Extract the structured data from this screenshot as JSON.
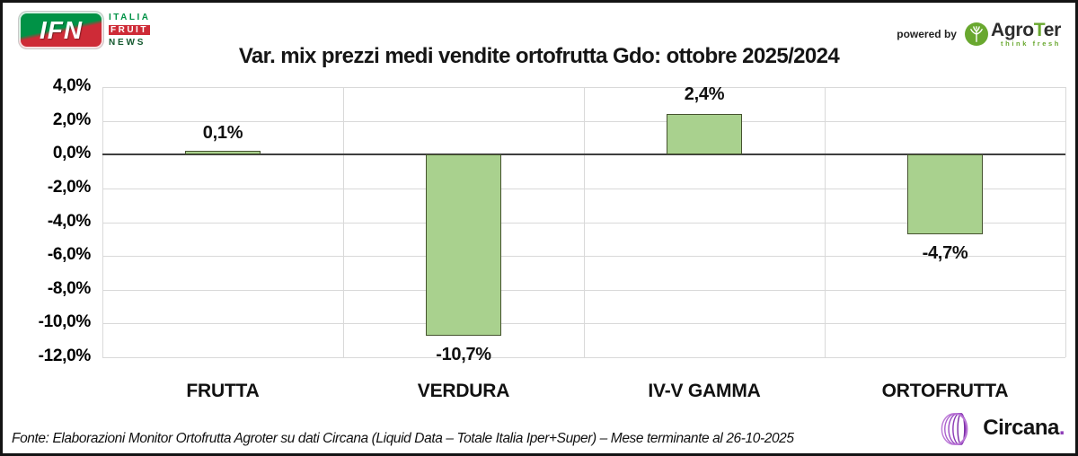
{
  "header": {
    "title": "Var. mix prezzi medi vendite ortofrutta Gdo: ottobre 2025/2024",
    "ifn_logo": {
      "acronym": "IFN",
      "line1": "ITALIA",
      "line2": "FRUIT",
      "line3": "NEWS"
    },
    "powered_by": "powered by",
    "agroter": {
      "name_prefix": "Agro",
      "name_t": "T",
      "name_suffix": "er",
      "tagline": "think fresh"
    }
  },
  "chart_data": {
    "type": "bar",
    "title": "Var. mix prezzi medi vendite ortofrutta Gdo: ottobre 2025/2024",
    "categories": [
      "FRUTTA",
      "VERDURA",
      "IV-V GAMMA",
      "ORTOFRUTTA"
    ],
    "values": [
      0.1,
      -10.7,
      2.4,
      -4.7
    ],
    "value_labels": [
      "0,1%",
      "-10,7%",
      "2,4%",
      "-4,7%"
    ],
    "ylabel": "",
    "xlabel": "",
    "ylim": [
      -12,
      4
    ],
    "ytick_step": 2,
    "ytick_labels": [
      "4,0%",
      "2,0%",
      "0,0%",
      "-2,0%",
      "-4,0%",
      "-6,0%",
      "-8,0%",
      "-10,0%",
      "-12,0%"
    ],
    "grid": true,
    "legend": "none",
    "bar_color": "#a9d18e",
    "bar_border_color": "#45532f",
    "gridline_color": "#d9d9d9",
    "zero_line_color": "#3f3f3f"
  },
  "footer": {
    "source": "Fonte: Elaborazioni Monitor Ortofrutta Agroter su dati Circana (Liquid Data – Totale Italia Iper+Super) – Mese terminante al 26-10-2025",
    "circana": {
      "name": "Circana",
      "dot": "."
    }
  },
  "colors": {
    "ifn_green": "#009246",
    "ifn_red": "#ce2b37",
    "ifn_news_green": "#14592f",
    "agroter_green": "#69a82f",
    "circana_purple": "#8e3db8"
  }
}
